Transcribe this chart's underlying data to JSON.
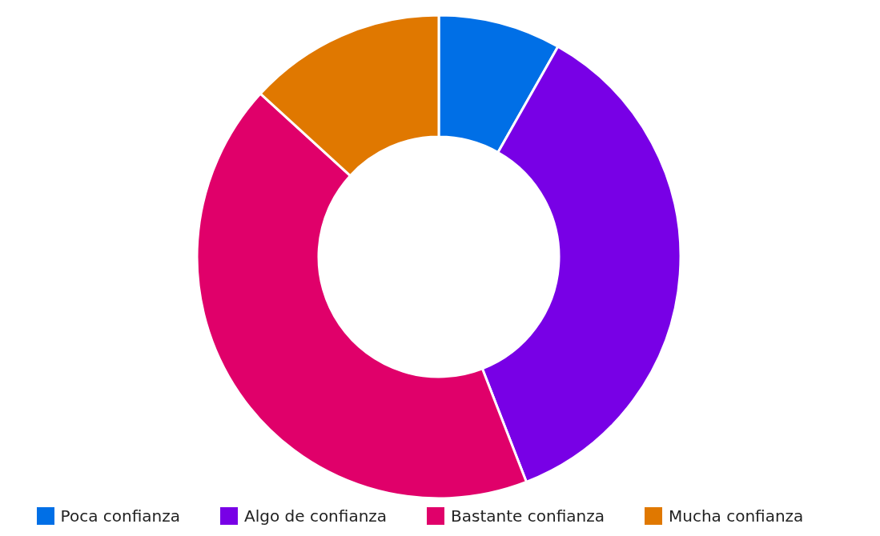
{
  "chart_data": {
    "type": "donut",
    "categories": [
      "Poca confianza",
      "Algo de confianza",
      "Bastante confianza",
      "Mucha confianza"
    ],
    "values": [
      8.2,
      35.9,
      42.7,
      13.2
    ],
    "colors": [
      "#006fe6",
      "#7800e6",
      "#e0006a",
      "#e07800"
    ],
    "legend": "bottom"
  }
}
